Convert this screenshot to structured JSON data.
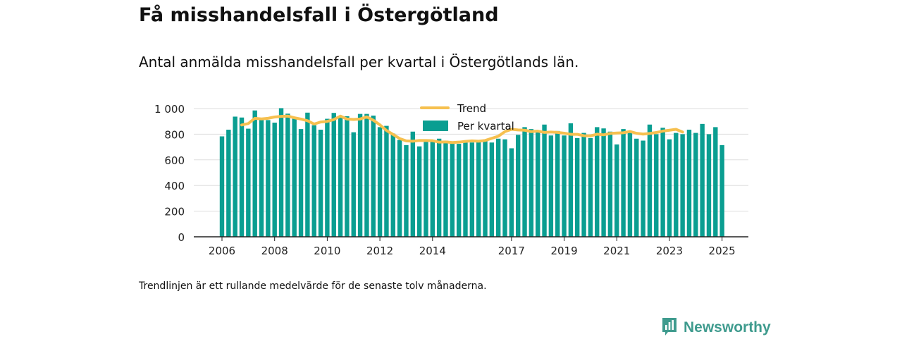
{
  "header": {
    "title": "Få misshandelsfall i Östergötland",
    "subtitle": "Antal anmälda misshandelsfall per kvartal i Östergötlands län."
  },
  "footer": {
    "note": "Trendlinjen är ett rullande medelvärde för de senaste tolv månaderna.",
    "brand": "Newsworthy",
    "brand_icon": "bar-chart-bubble-icon"
  },
  "colors": {
    "bar": "#0a9e91",
    "trend": "#f6c04f",
    "axis": "#222222",
    "grid": "#dddddd",
    "brand": "#3f9b8e"
  },
  "chart_data": {
    "type": "bar",
    "grid": true,
    "legend_position": "top-center",
    "ylim": [
      0,
      1000
    ],
    "yticks": [
      0,
      200,
      400,
      600,
      800,
      1000
    ],
    "ytick_labels": [
      "0",
      "200",
      "400",
      "600",
      "800",
      "1 000"
    ],
    "xlim": [
      2006,
      2025.75
    ],
    "xticks": [
      2006,
      2008,
      2010,
      2012,
      2014,
      2017,
      2019,
      2021,
      2023,
      2025
    ],
    "xtick_labels": [
      "2006",
      "2008",
      "2010",
      "2012",
      "2014",
      "2017",
      "2019",
      "2021",
      "2023",
      "2025"
    ],
    "series": [
      {
        "name": "Per kvartal",
        "type": "bar",
        "x": [
          "2006-Q1",
          "2006-Q2",
          "2006-Q3",
          "2006-Q4",
          "2007-Q1",
          "2007-Q2",
          "2007-Q3",
          "2007-Q4",
          "2008-Q1",
          "2008-Q2",
          "2008-Q3",
          "2008-Q4",
          "2009-Q1",
          "2009-Q2",
          "2009-Q3",
          "2009-Q4",
          "2010-Q1",
          "2010-Q2",
          "2010-Q3",
          "2010-Q4",
          "2011-Q1",
          "2011-Q2",
          "2011-Q3",
          "2011-Q4",
          "2012-Q1",
          "2012-Q2",
          "2012-Q3",
          "2012-Q4",
          "2013-Q1",
          "2013-Q2",
          "2013-Q3",
          "2013-Q4",
          "2014-Q1",
          "2014-Q2",
          "2014-Q3",
          "2014-Q4",
          "2015-Q1",
          "2015-Q2",
          "2015-Q3",
          "2015-Q4",
          "2016-Q1",
          "2016-Q2",
          "2016-Q3",
          "2016-Q4",
          "2017-Q1",
          "2017-Q2",
          "2017-Q3",
          "2017-Q4",
          "2018-Q1",
          "2018-Q2",
          "2018-Q3",
          "2018-Q4",
          "2019-Q1",
          "2019-Q2",
          "2019-Q3",
          "2019-Q4",
          "2020-Q1",
          "2020-Q2",
          "2020-Q3",
          "2020-Q4",
          "2021-Q1",
          "2021-Q2",
          "2021-Q3",
          "2021-Q4",
          "2022-Q1",
          "2022-Q2",
          "2022-Q3",
          "2022-Q4",
          "2023-Q1",
          "2023-Q2",
          "2023-Q3",
          "2023-Q4",
          "2024-Q1",
          "2024-Q2",
          "2024-Q3",
          "2024-Q4",
          "2025-Q1"
        ],
        "values": [
          783,
          835,
          937,
          930,
          843,
          985,
          920,
          910,
          890,
          1003,
          960,
          920,
          840,
          968,
          870,
          835,
          920,
          966,
          940,
          940,
          815,
          958,
          958,
          945,
          855,
          865,
          805,
          755,
          715,
          820,
          705,
          740,
          750,
          765,
          750,
          740,
          725,
          735,
          735,
          755,
          750,
          735,
          765,
          760,
          690,
          795,
          855,
          840,
          815,
          875,
          790,
          825,
          790,
          885,
          770,
          810,
          770,
          855,
          845,
          820,
          720,
          840,
          815,
          765,
          750,
          875,
          800,
          850,
          760,
          810,
          800,
          835,
          810,
          880,
          800,
          855,
          715
        ]
      },
      {
        "name": "Trend",
        "type": "line",
        "x_start": "2006-Q4",
        "values": [
          872,
          883,
          924,
          919,
          924,
          934,
          939,
          941,
          928,
          918,
          905,
          879,
          895,
          900,
          914,
          941,
          918,
          915,
          918,
          935,
          909,
          873,
          829,
          798,
          766,
          748,
          745,
          751,
          751,
          749,
          738,
          740,
          735,
          738,
          744,
          748,
          745,
          751,
          768,
          784,
          820,
          838,
          833,
          831,
          820,
          824,
          814,
          817,
          814,
          808,
          799,
          799,
          788,
          787,
          800,
          795,
          806,
          809,
          811,
          821,
          807,
          801,
          806,
          813,
          824,
          831,
          838,
          817
        ]
      }
    ]
  }
}
